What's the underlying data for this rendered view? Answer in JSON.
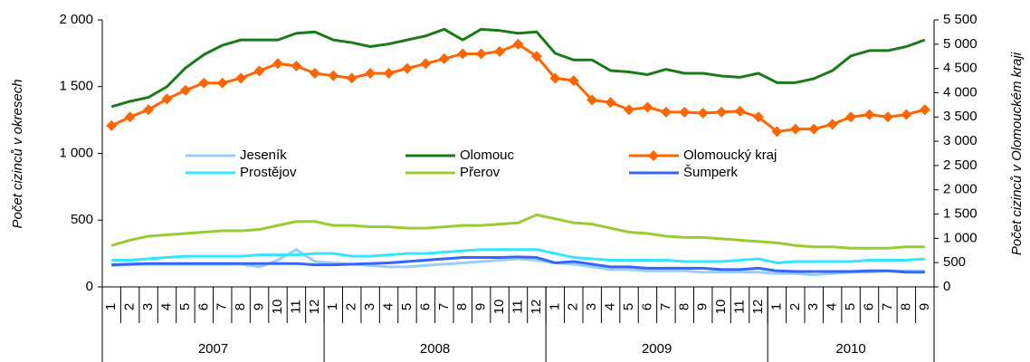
{
  "chart_data": {
    "type": "line",
    "y_label": "Počet cizinců v okresech",
    "y2_label": "Počet cizinců v Olomouckém kraji",
    "categories": [
      "1",
      "2",
      "3",
      "4",
      "5",
      "6",
      "7",
      "8",
      "9",
      "10",
      "11",
      "12",
      "1",
      "2",
      "3",
      "4",
      "5",
      "6",
      "7",
      "8",
      "9",
      "10",
      "11",
      "12",
      "1",
      "2",
      "3",
      "4",
      "5",
      "6",
      "7",
      "8",
      "9",
      "10",
      "11",
      "12",
      "1",
      "2",
      "3",
      "4",
      "5",
      "6",
      "7",
      "8",
      "9"
    ],
    "groups": [
      "2007",
      "2008",
      "2009",
      "2010"
    ],
    "ylim": [
      0,
      2000
    ],
    "yticks": [
      {
        "value": 0,
        "label": "0"
      },
      {
        "value": 500,
        "label": "500"
      },
      {
        "value": 1000,
        "label": "1 000"
      },
      {
        "value": 1500,
        "label": "1 500"
      },
      {
        "value": 2000,
        "label": "2 000"
      }
    ],
    "y2lim": [
      0,
      5500
    ],
    "y2ticks": [
      {
        "value": 0,
        "label": "0"
      },
      {
        "value": 500,
        "label": "500"
      },
      {
        "value": 1000,
        "label": "1 000"
      },
      {
        "value": 1500,
        "label": "1 500"
      },
      {
        "value": 2000,
        "label": "2 000"
      },
      {
        "value": 2500,
        "label": "2 500"
      },
      {
        "value": 3000,
        "label": "3 000"
      },
      {
        "value": 3500,
        "label": "3 500"
      },
      {
        "value": 4000,
        "label": "4 000"
      },
      {
        "value": 4500,
        "label": "4 500"
      },
      {
        "value": 5000,
        "label": "5 000"
      },
      {
        "value": 5500,
        "label": "5 500"
      }
    ],
    "grid": false,
    "legend": "center",
    "series": [
      {
        "name": "Jeseník",
        "color": "#99ccff",
        "values": [
          160,
          165,
          170,
          170,
          170,
          170,
          170,
          170,
          150,
          200,
          280,
          190,
          180,
          170,
          160,
          150,
          150,
          160,
          170,
          180,
          190,
          200,
          210,
          200,
          180,
          170,
          150,
          130,
          130,
          120,
          120,
          120,
          110,
          110,
          110,
          110,
          100,
          100,
          90,
          100,
          110,
          110,
          120,
          120,
          120
        ]
      },
      {
        "name": "Olomouc",
        "color": "#1a7a1a",
        "values": [
          1350,
          1390,
          1420,
          1500,
          1640,
          1740,
          1810,
          1850,
          1850,
          1850,
          1900,
          1910,
          1850,
          1830,
          1800,
          1820,
          1850,
          1880,
          1930,
          1850,
          1930,
          1920,
          1900,
          1910,
          1750,
          1700,
          1700,
          1620,
          1610,
          1590,
          1630,
          1600,
          1600,
          1580,
          1570,
          1600,
          1530,
          1530,
          1560,
          1620,
          1730,
          1770,
          1770,
          1800,
          1850
        ]
      },
      {
        "name": "Olomoucký kraj",
        "color": "#ff6600",
        "axis": "y2",
        "marker": "diamond",
        "values": [
          3320,
          3500,
          3650,
          3870,
          4050,
          4200,
          4200,
          4300,
          4450,
          4600,
          4550,
          4400,
          4350,
          4300,
          4400,
          4400,
          4500,
          4600,
          4700,
          4800,
          4800,
          4850,
          5000,
          4750,
          4300,
          4250,
          3850,
          3800,
          3650,
          3700,
          3600,
          3600,
          3580,
          3600,
          3620,
          3500,
          3200,
          3250,
          3250,
          3350,
          3500,
          3550,
          3500,
          3550,
          3650
        ]
      },
      {
        "name": "Prostějov",
        "color": "#33e6ff",
        "values": [
          200,
          200,
          210,
          220,
          230,
          230,
          230,
          230,
          240,
          240,
          240,
          250,
          250,
          230,
          230,
          240,
          250,
          250,
          260,
          270,
          280,
          280,
          280,
          280,
          250,
          220,
          210,
          200,
          200,
          200,
          200,
          190,
          190,
          190,
          200,
          210,
          180,
          190,
          190,
          190,
          190,
          200,
          200,
          200,
          210
        ]
      },
      {
        "name": "Přerov",
        "color": "#99cc33",
        "values": [
          310,
          350,
          380,
          390,
          400,
          410,
          420,
          420,
          430,
          460,
          490,
          490,
          460,
          460,
          450,
          450,
          440,
          440,
          450,
          460,
          460,
          470,
          480,
          540,
          510,
          480,
          470,
          440,
          410,
          400,
          380,
          370,
          370,
          360,
          350,
          340,
          330,
          310,
          300,
          300,
          290,
          290,
          290,
          300,
          300
        ]
      },
      {
        "name": "Šumperk",
        "color": "#3366ff",
        "values": [
          165,
          170,
          175,
          175,
          175,
          175,
          175,
          175,
          175,
          175,
          175,
          165,
          165,
          170,
          175,
          180,
          190,
          200,
          210,
          220,
          220,
          220,
          225,
          220,
          180,
          190,
          170,
          150,
          150,
          140,
          140,
          140,
          140,
          130,
          130,
          140,
          120,
          115,
          115,
          115,
          115,
          120,
          120,
          110,
          110
        ]
      }
    ]
  }
}
